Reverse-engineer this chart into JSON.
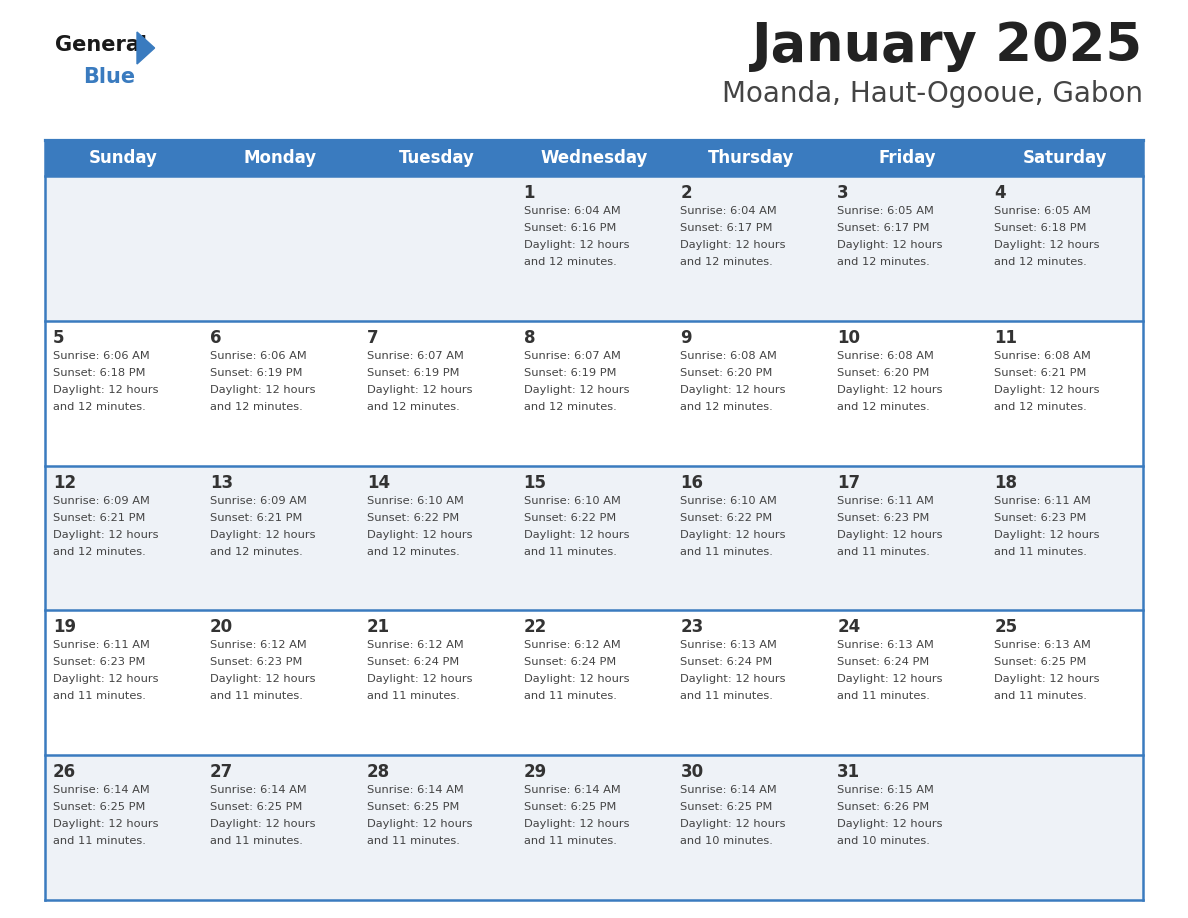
{
  "title": "January 2025",
  "subtitle": "Moanda, Haut-Ogooue, Gabon",
  "header_bg_color": "#3a7bbf",
  "header_text_color": "#ffffff",
  "day_names": [
    "Sunday",
    "Monday",
    "Tuesday",
    "Wednesday",
    "Thursday",
    "Friday",
    "Saturday"
  ],
  "row_bg_colors": [
    "#eef2f7",
    "#ffffff",
    "#eef2f7",
    "#ffffff",
    "#eef2f7"
  ],
  "border_color": "#3a7bbf",
  "text_color": "#444444",
  "day_num_color": "#333333",
  "logo_general_color": "#1a1a1a",
  "logo_blue_color": "#3a7bbf",
  "logo_triangle_color": "#3a7bbf",
  "calendar_data": [
    [
      null,
      null,
      null,
      {
        "day": 1,
        "sunrise": "6:04 AM",
        "sunset": "6:16 PM",
        "daylight": "12 hours and 12 minutes"
      },
      {
        "day": 2,
        "sunrise": "6:04 AM",
        "sunset": "6:17 PM",
        "daylight": "12 hours and 12 minutes"
      },
      {
        "day": 3,
        "sunrise": "6:05 AM",
        "sunset": "6:17 PM",
        "daylight": "12 hours and 12 minutes"
      },
      {
        "day": 4,
        "sunrise": "6:05 AM",
        "sunset": "6:18 PM",
        "daylight": "12 hours and 12 minutes"
      }
    ],
    [
      {
        "day": 5,
        "sunrise": "6:06 AM",
        "sunset": "6:18 PM",
        "daylight": "12 hours and 12 minutes"
      },
      {
        "day": 6,
        "sunrise": "6:06 AM",
        "sunset": "6:19 PM",
        "daylight": "12 hours and 12 minutes"
      },
      {
        "day": 7,
        "sunrise": "6:07 AM",
        "sunset": "6:19 PM",
        "daylight": "12 hours and 12 minutes"
      },
      {
        "day": 8,
        "sunrise": "6:07 AM",
        "sunset": "6:19 PM",
        "daylight": "12 hours and 12 minutes"
      },
      {
        "day": 9,
        "sunrise": "6:08 AM",
        "sunset": "6:20 PM",
        "daylight": "12 hours and 12 minutes"
      },
      {
        "day": 10,
        "sunrise": "6:08 AM",
        "sunset": "6:20 PM",
        "daylight": "12 hours and 12 minutes"
      },
      {
        "day": 11,
        "sunrise": "6:08 AM",
        "sunset": "6:21 PM",
        "daylight": "12 hours and 12 minutes"
      }
    ],
    [
      {
        "day": 12,
        "sunrise": "6:09 AM",
        "sunset": "6:21 PM",
        "daylight": "12 hours and 12 minutes"
      },
      {
        "day": 13,
        "sunrise": "6:09 AM",
        "sunset": "6:21 PM",
        "daylight": "12 hours and 12 minutes"
      },
      {
        "day": 14,
        "sunrise": "6:10 AM",
        "sunset": "6:22 PM",
        "daylight": "12 hours and 12 minutes"
      },
      {
        "day": 15,
        "sunrise": "6:10 AM",
        "sunset": "6:22 PM",
        "daylight": "12 hours and 11 minutes"
      },
      {
        "day": 16,
        "sunrise": "6:10 AM",
        "sunset": "6:22 PM",
        "daylight": "12 hours and 11 minutes"
      },
      {
        "day": 17,
        "sunrise": "6:11 AM",
        "sunset": "6:23 PM",
        "daylight": "12 hours and 11 minutes"
      },
      {
        "day": 18,
        "sunrise": "6:11 AM",
        "sunset": "6:23 PM",
        "daylight": "12 hours and 11 minutes"
      }
    ],
    [
      {
        "day": 19,
        "sunrise": "6:11 AM",
        "sunset": "6:23 PM",
        "daylight": "12 hours and 11 minutes"
      },
      {
        "day": 20,
        "sunrise": "6:12 AM",
        "sunset": "6:23 PM",
        "daylight": "12 hours and 11 minutes"
      },
      {
        "day": 21,
        "sunrise": "6:12 AM",
        "sunset": "6:24 PM",
        "daylight": "12 hours and 11 minutes"
      },
      {
        "day": 22,
        "sunrise": "6:12 AM",
        "sunset": "6:24 PM",
        "daylight": "12 hours and 11 minutes"
      },
      {
        "day": 23,
        "sunrise": "6:13 AM",
        "sunset": "6:24 PM",
        "daylight": "12 hours and 11 minutes"
      },
      {
        "day": 24,
        "sunrise": "6:13 AM",
        "sunset": "6:24 PM",
        "daylight": "12 hours and 11 minutes"
      },
      {
        "day": 25,
        "sunrise": "6:13 AM",
        "sunset": "6:25 PM",
        "daylight": "12 hours and 11 minutes"
      }
    ],
    [
      {
        "day": 26,
        "sunrise": "6:14 AM",
        "sunset": "6:25 PM",
        "daylight": "12 hours and 11 minutes"
      },
      {
        "day": 27,
        "sunrise": "6:14 AM",
        "sunset": "6:25 PM",
        "daylight": "12 hours and 11 minutes"
      },
      {
        "day": 28,
        "sunrise": "6:14 AM",
        "sunset": "6:25 PM",
        "daylight": "12 hours and 11 minutes"
      },
      {
        "day": 29,
        "sunrise": "6:14 AM",
        "sunset": "6:25 PM",
        "daylight": "12 hours and 11 minutes"
      },
      {
        "day": 30,
        "sunrise": "6:14 AM",
        "sunset": "6:25 PM",
        "daylight": "12 hours and 10 minutes"
      },
      {
        "day": 31,
        "sunrise": "6:15 AM",
        "sunset": "6:26 PM",
        "daylight": "12 hours and 10 minutes"
      },
      null
    ]
  ]
}
